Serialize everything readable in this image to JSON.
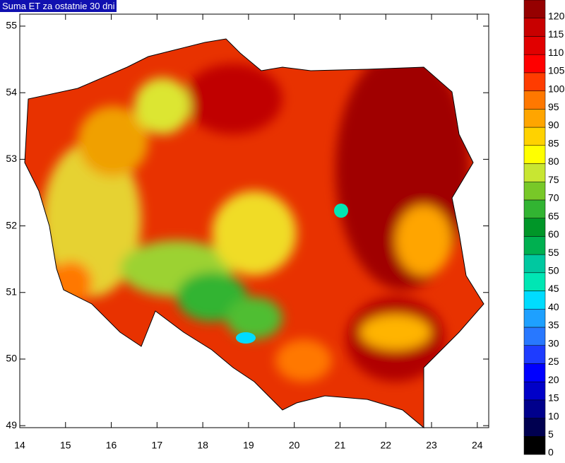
{
  "title": "Suma ET za ostatnie 30 dni",
  "map": {
    "lon_range": [
      14,
      24.25
    ],
    "lat_range": [
      48.97,
      55.18
    ],
    "xticks": [
      14,
      15,
      16,
      17,
      18,
      19,
      20,
      21,
      22,
      23,
      24
    ],
    "yticks": [
      49,
      50,
      51,
      52,
      53,
      54,
      55
    ]
  },
  "colorbar": {
    "levels": [
      0,
      5,
      10,
      15,
      20,
      25,
      30,
      35,
      40,
      45,
      50,
      55,
      60,
      65,
      70,
      75,
      80,
      85,
      90,
      95,
      100,
      105,
      110,
      115,
      120
    ],
    "colors": [
      "#000000",
      "#000050",
      "#00008c",
      "#0000c8",
      "#0000ff",
      "#1e3cff",
      "#2878ff",
      "#1ea0ff",
      "#00dcff",
      "#00e6b4",
      "#00c8a0",
      "#00b050",
      "#009628",
      "#32b432",
      "#78c828",
      "#c8e632",
      "#ffff00",
      "#ffd200",
      "#ffa500",
      "#ff7800",
      "#ff3c00",
      "#ff0000",
      "#e10000",
      "#c80000",
      "#960000"
    ]
  }
}
